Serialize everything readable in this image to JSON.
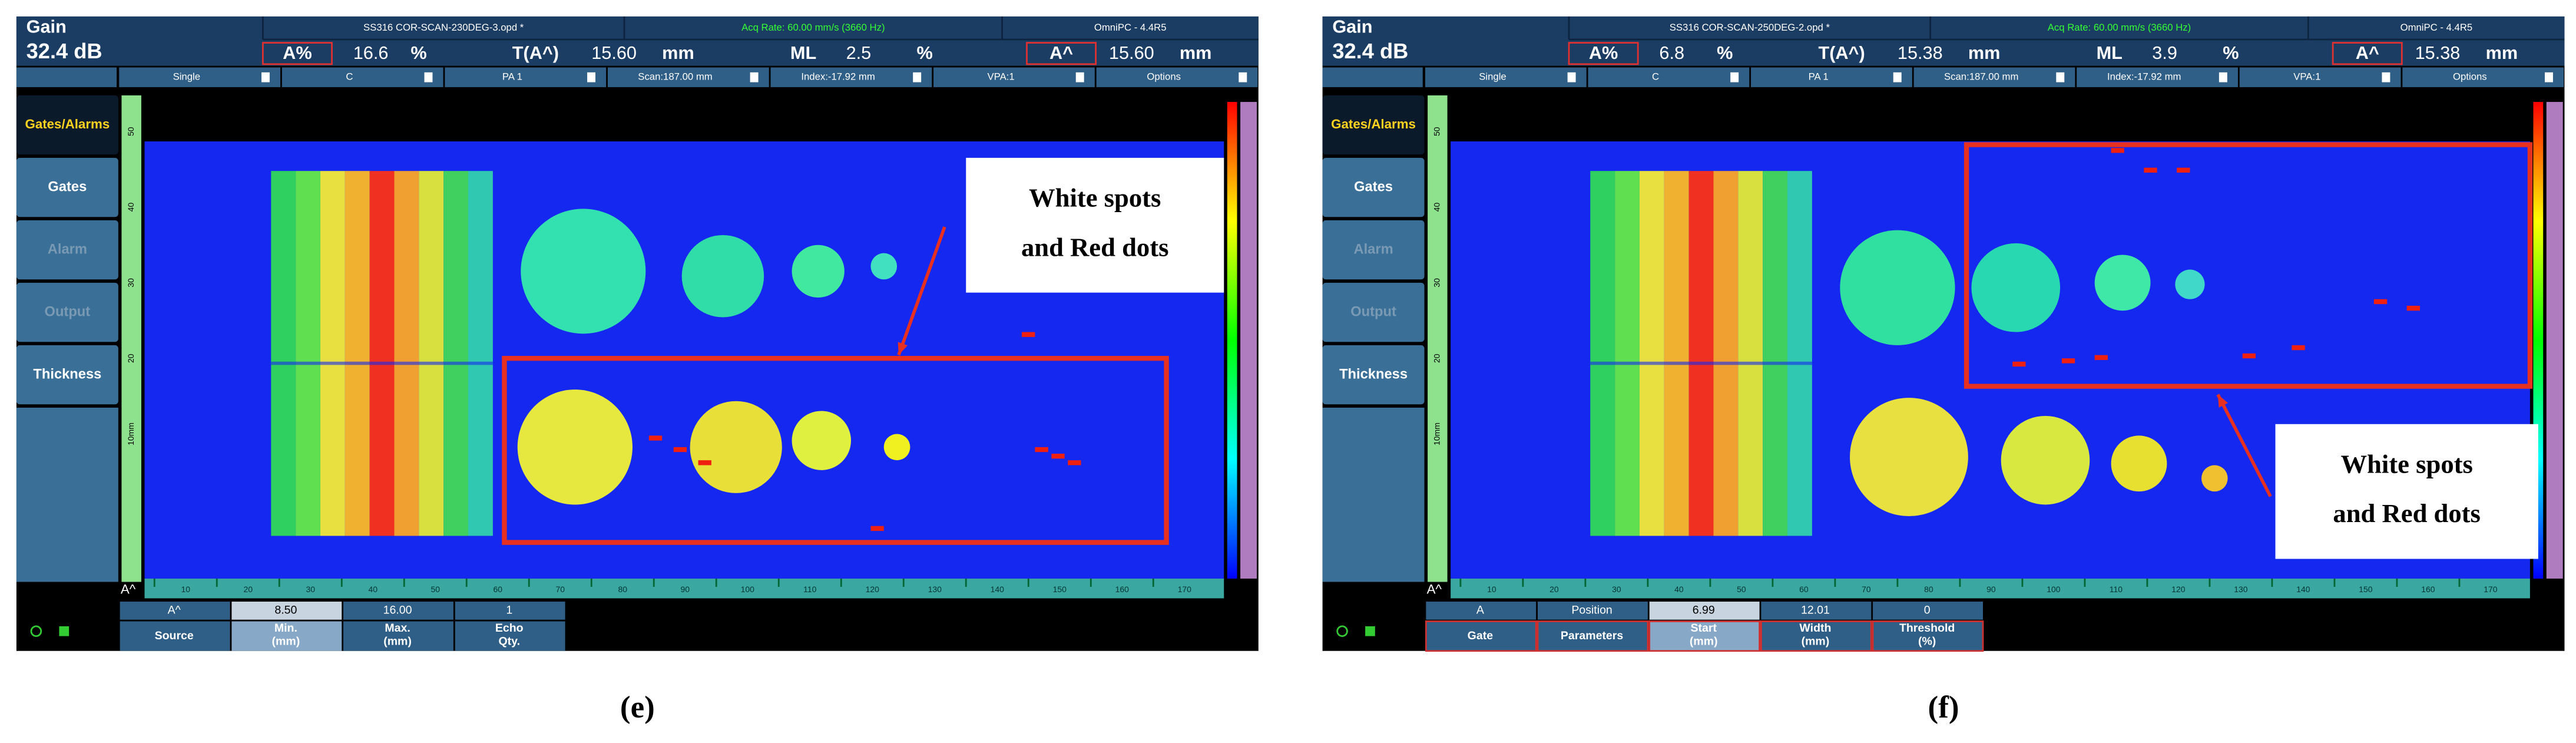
{
  "panels": [
    {
      "header": {
        "gain_label": "Gain",
        "gain_value": "32.4 dB",
        "file": "SS316 COR-SCAN-230DEG-3.opd *",
        "acq_rate": "Acq Rate: 60.00 mm/s (3660 Hz)",
        "app": "OmniPC - 4.4R5",
        "readings": [
          {
            "label": "A%",
            "value": "16.6",
            "unit": "%"
          },
          {
            "label": "T(A^)",
            "value": "15.60",
            "unit": "mm"
          },
          {
            "label": "ML",
            "value": "2.5",
            "unit": "%"
          },
          {
            "label": "A^",
            "value": "15.60",
            "unit": "mm"
          }
        ]
      },
      "toolbar": [
        "Single",
        "C",
        "PA 1",
        "Scan:187.00 mm",
        "Index:-17.92 mm",
        "VPA:1",
        "Options"
      ],
      "side_menu": [
        "Gates/Alarms",
        "Gates",
        "Alarm",
        "Output",
        "Thickness"
      ],
      "ruler_x": [
        "10",
        "20",
        "30",
        "40",
        "50",
        "60",
        "70",
        "80",
        "90",
        "100",
        "110",
        "120",
        "130",
        "140",
        "150",
        "160",
        "170"
      ],
      "ruler_y": [
        "50",
        "40",
        "30",
        "20",
        "10mm"
      ],
      "cursor": "A^",
      "params": [
        {
          "top": "A^",
          "label": [
            "Source"
          ]
        },
        {
          "top": "8.50",
          "label": [
            "Min.",
            "(mm)"
          ]
        },
        {
          "top": "16.00",
          "label": [
            "Max.",
            "(mm)"
          ]
        },
        {
          "top": "1",
          "label": [
            "Echo",
            "Qty."
          ]
        }
      ],
      "annotation": [
        "White spots",
        "and Red dots"
      ],
      "caption": "(e)"
    },
    {
      "header": {
        "gain_label": "Gain",
        "gain_value": "32.4 dB",
        "file": "SS316 COR-SCAN-250DEG-2.opd *",
        "acq_rate": "Acq Rate: 60.00 mm/s (3660 Hz)",
        "app": "OmniPC - 4.4R5",
        "readings": [
          {
            "label": "A%",
            "value": "6.8",
            "unit": "%"
          },
          {
            "label": "T(A^)",
            "value": "15.38",
            "unit": "mm"
          },
          {
            "label": "ML",
            "value": "3.9",
            "unit": "%"
          },
          {
            "label": "A^",
            "value": "15.38",
            "unit": "mm"
          }
        ]
      },
      "toolbar": [
        "Single",
        "C",
        "PA 1",
        "Scan:187.00 mm",
        "Index:-17.92 mm",
        "VPA:1",
        "Options"
      ],
      "side_menu": [
        "Gates/Alarms",
        "Gates",
        "Alarm",
        "Output",
        "Thickness"
      ],
      "ruler_x": [
        "10",
        "20",
        "30",
        "40",
        "50",
        "60",
        "70",
        "80",
        "90",
        "100",
        "110",
        "120",
        "130",
        "140",
        "150",
        "160",
        "170"
      ],
      "ruler_y": [
        "50",
        "40",
        "30",
        "20",
        "10mm"
      ],
      "cursor": "A^",
      "params": [
        {
          "top": "A",
          "label": [
            "Gate"
          ]
        },
        {
          "top": "Position",
          "label": [
            "Parameters"
          ]
        },
        {
          "top": "6.99",
          "label": [
            "Start",
            "(mm)"
          ]
        },
        {
          "top": "12.01",
          "label": [
            "Width",
            "(mm)"
          ]
        },
        {
          "top": "0",
          "label": [
            "Threshold",
            "(%)"
          ]
        }
      ],
      "annotation": [
        "White spots",
        "and Red dots"
      ],
      "caption": "(f)"
    }
  ]
}
